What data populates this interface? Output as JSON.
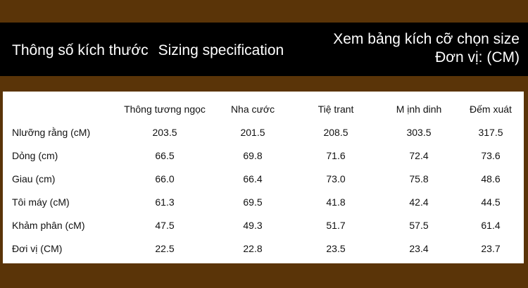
{
  "header": {
    "title_vi": "Thông số kích thước",
    "title_en": "Sizing specification",
    "note_line1": "Xem bảng kích cỡ chọn size",
    "note_line2": "Đơn vị: (CM)"
  },
  "table": {
    "columns": [
      "",
      "Thông tương ngọc",
      "Nha cước",
      "Tiệ trant",
      "M ịnh dinh",
      "Đếm xuát"
    ],
    "rows": [
      {
        "label": "Nlưỡng rằng (cM)",
        "values": [
          "203.5",
          "201.5",
          "208.5",
          "303.5",
          "317.5"
        ]
      },
      {
        "label": "Dỏng (cm)",
        "values": [
          "66.5",
          "69.8",
          "71.6",
          "72.4",
          "73.6"
        ]
      },
      {
        "label": "Giau (cm)",
        "values": [
          "66.0",
          "66.4",
          "73.0",
          "75.8",
          "48.6"
        ]
      },
      {
        "label": "Tôi máy (cM)",
        "values": [
          "61.3",
          "69.5",
          "41.8",
          "42.4",
          "44.5"
        ]
      },
      {
        "label": "Khảm phân (cM)",
        "values": [
          "47.5",
          "49.3",
          "51.7",
          "57.5",
          "61.4"
        ]
      },
      {
        "label": "Đơi vị (CM)",
        "values": [
          "22.5",
          "22.8",
          "23.5",
          "23.4",
          "23.7"
        ]
      }
    ]
  }
}
